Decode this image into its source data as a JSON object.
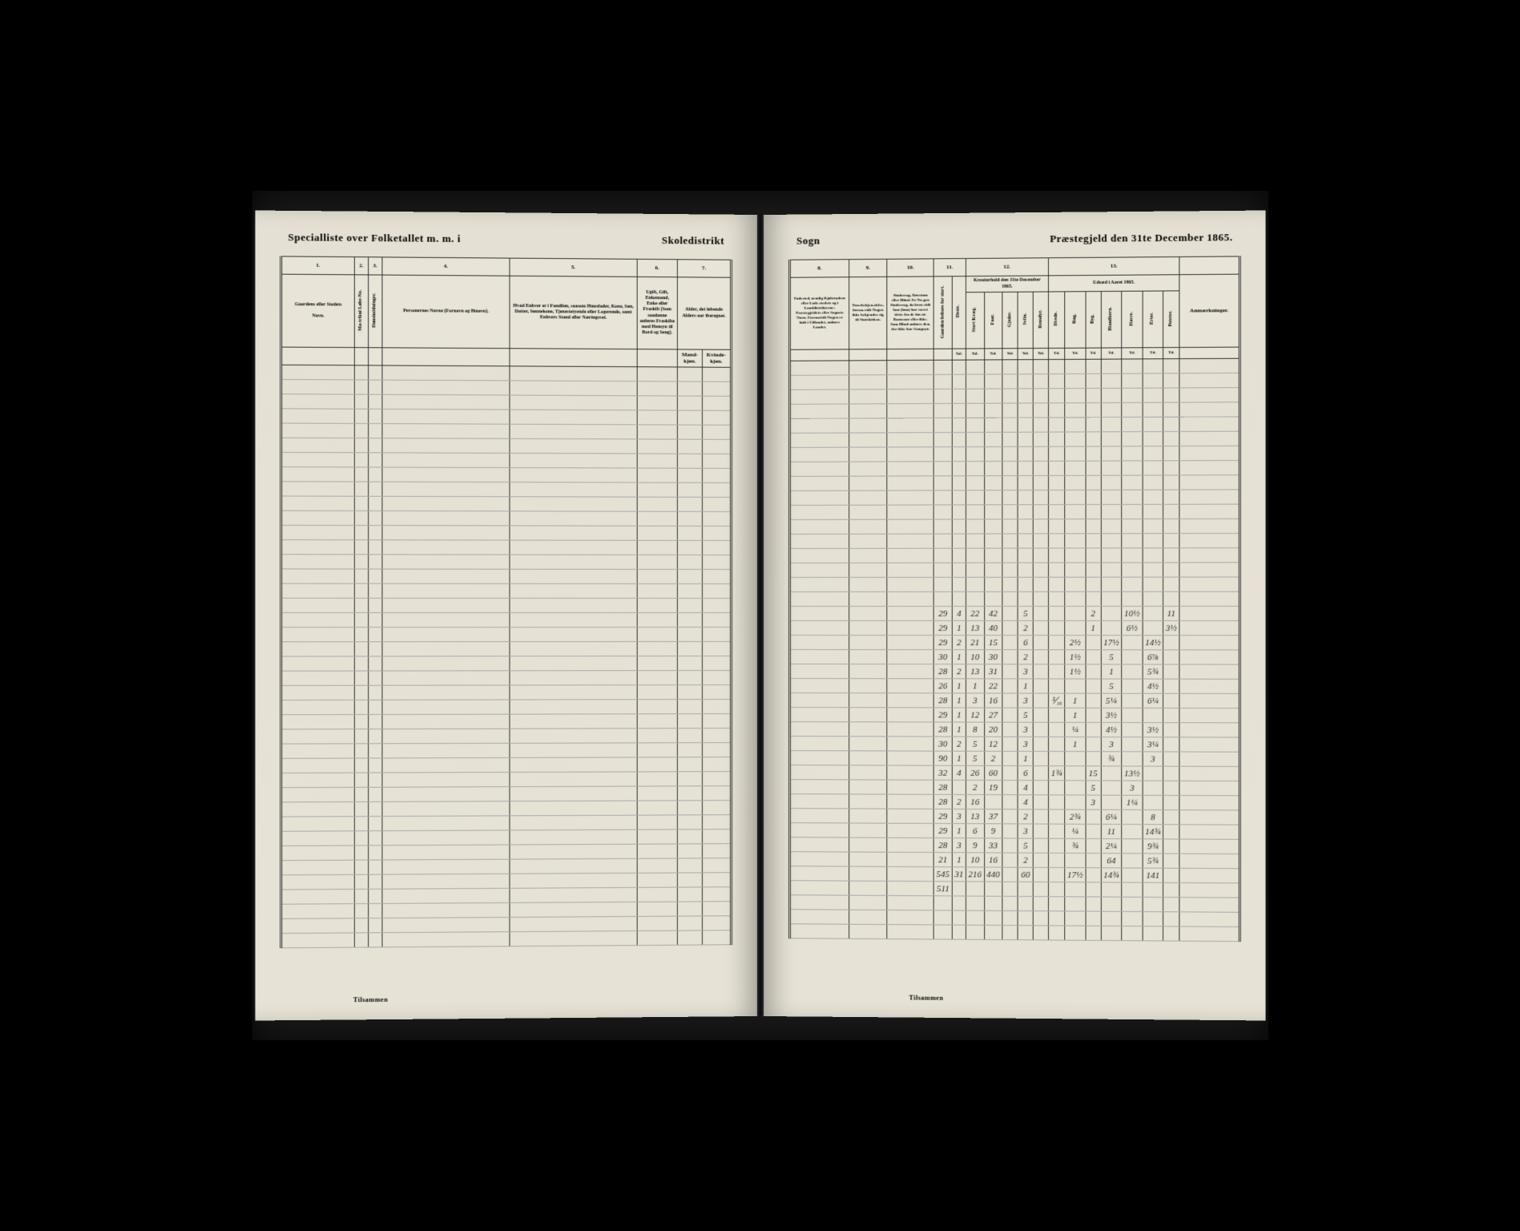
{
  "document": {
    "type": "census_ledger",
    "year": "1865",
    "country": "Norway"
  },
  "left_page": {
    "title_left": "Specialliste over Folketallet m. m. i",
    "title_right": "Skoledistrikt",
    "columns": {
      "c1": {
        "num": "1.",
        "label": "Gaardens eller Stedets",
        "sublabel": "Navn."
      },
      "c2": {
        "num": "2.",
        "label_a": "Ma-trikul Løbe-No.",
        "label_b": "Huusholdninger."
      },
      "c3": {
        "num": "3."
      },
      "c4": {
        "num": "4.",
        "label": "Personernes Navne (Fornavn og Binavn)."
      },
      "c5": {
        "num": "5.",
        "label": "Hvad Enhver er i Familien, saasom Huusfader, Kone, Søn, Datter, Sønnekone, Tjenestetyende eller Logerende, samt Enhvers Stand eller Næringsvei."
      },
      "c6": {
        "num": "6.",
        "label": "Ugift, Gift, Enkemand, Enke eller Fraskilt (Som saadanne anføres Fraskilte med Hensyn til Bord og Seng)."
      },
      "c7": {
        "num": "7.",
        "label": "Alder, det løbende Alders-aar iberegnet.",
        "sub_a": "Mand-kjøn.",
        "sub_b": "Kvinde-kjøn."
      }
    },
    "footer": "Tilsammen"
  },
  "right_page": {
    "title_left": "Sogn",
    "title_right": "Præstegjeld den 31te December 1865.",
    "columns": {
      "c8": {
        "num": "8.",
        "label": "Fødested, nemlig Kjøbstadens eller Lade-stedets og i Landdistrikterne: Præstegjeldets eller Sognets Navn. Forsaavidt Nogen er født i Udlandet, anføres Landet."
      },
      "c9": {
        "num": "9.",
        "label": "Troesbekjen-delse, forsaa-vidt Nogen ikke bekjender sig til Statskirken."
      },
      "c10": {
        "num": "10.",
        "label": "Sindssvag, Døvstum eller Blind. Er No-gen Sindssvag, da hvor-vidt han (hun) har været dette fra de før-ste Barneaar eller ikke. Som Blind anføres den, der ikke har Gangsyn."
      },
      "c11": {
        "num": "11.",
        "label_a": "Gaarden beboes for stort.",
        "label_b": "Heste."
      },
      "c12": {
        "num": "12.",
        "label": "Kreaturhold den 31te December 1865.",
        "subs": [
          "Stort Kvæg.",
          "Faar.",
          "Gjeder.",
          "Sviin.",
          "Rensdyr."
        ]
      },
      "c13": {
        "num": "13.",
        "label": "Udsæd i Aaret 1865.",
        "subs": [
          "Hvede.",
          "Rug.",
          "Byg.",
          "Blandkorn.",
          "Havre.",
          "Erter.",
          "Poteter."
        ]
      },
      "c14": {
        "label": "Anmærkninger."
      }
    },
    "footer": "Tilsammen",
    "data_rows": [
      {
        "r": [
          "29",
          "4",
          "22",
          "42",
          "",
          "5",
          "",
          "",
          "",
          "2",
          "",
          "10½",
          "",
          "11",
          ""
        ]
      },
      {
        "r": [
          "29",
          "1",
          "13",
          "40",
          "",
          "2",
          "",
          "",
          "",
          "1",
          "",
          "6½",
          "",
          "3½",
          ""
        ]
      },
      {
        "r": [
          "29",
          "2",
          "21",
          "15",
          "",
          "6",
          "",
          "",
          "2½",
          "",
          "17½",
          "",
          "14½",
          "",
          ""
        ]
      },
      {
        "r": [
          "30",
          "1",
          "10",
          "30",
          "",
          "2",
          "",
          "",
          "1½",
          "",
          "5",
          "",
          "6⅞",
          "",
          ""
        ]
      },
      {
        "r": [
          "28",
          "2",
          "13",
          "31",
          "",
          "3",
          "",
          "",
          "1½",
          "",
          "1",
          "",
          "5¾",
          "",
          ""
        ]
      },
      {
        "r": [
          "26",
          "1",
          "1",
          "22",
          "",
          "1",
          "",
          "",
          "",
          "",
          "5",
          "",
          "4½",
          "",
          ""
        ]
      },
      {
        "r": [
          "28",
          "1",
          "3",
          "16",
          "",
          "3",
          "",
          "⅟₁₆",
          "1",
          "",
          "5¼",
          "",
          "6¼",
          "",
          ""
        ]
      },
      {
        "r": [
          "29",
          "1",
          "12",
          "27",
          "",
          "5",
          "",
          "",
          "1",
          "",
          "3½",
          "",
          "",
          "",
          ""
        ]
      },
      {
        "r": [
          "28",
          "1",
          "8",
          "20",
          "",
          "3",
          "",
          "",
          "¼",
          "",
          "4½",
          "",
          "3½",
          "",
          ""
        ]
      },
      {
        "r": [
          "30",
          "2",
          "5",
          "12",
          "",
          "3",
          "",
          "",
          "1",
          "",
          "3",
          "",
          "3¼",
          "",
          ""
        ]
      },
      {
        "r": [
          "90",
          "1",
          "5",
          "2",
          "",
          "1",
          "",
          "",
          "",
          "",
          "¾",
          "",
          "3",
          "",
          ""
        ]
      },
      {
        "r": [
          "32",
          "4",
          "26",
          "60",
          "",
          "6",
          "",
          "1¾",
          "",
          "15",
          "",
          "13½",
          "",
          "",
          ""
        ]
      },
      {
        "r": [
          "28",
          "",
          "2",
          "19",
          "",
          "4",
          "",
          "",
          "",
          "5",
          "",
          "3",
          "",
          "",
          ""
        ]
      },
      {
        "r": [
          "28",
          "2",
          "16",
          "",
          "",
          "4",
          "",
          "",
          "",
          "3",
          "",
          "1¼",
          "",
          "",
          ""
        ]
      },
      {
        "r": [
          "29",
          "3",
          "13",
          "37",
          "",
          "2",
          "",
          "",
          "2¾",
          "",
          "6¼",
          "",
          "8",
          "",
          ""
        ]
      },
      {
        "r": [
          "29",
          "1",
          "6",
          "9",
          "",
          "3",
          "",
          "",
          "¼",
          "",
          "11",
          "",
          "14¾",
          "",
          ""
        ]
      },
      {
        "r": [
          "28",
          "3",
          "9",
          "33",
          "",
          "5",
          "",
          "",
          "¾",
          "",
          "2¼",
          "",
          "9¾",
          "",
          ""
        ]
      },
      {
        "r": [
          "21",
          "1",
          "10",
          "16",
          "",
          "2",
          "",
          "",
          "",
          "",
          "64",
          "",
          "5¾",
          "",
          ""
        ]
      },
      {
        "r": [
          "545",
          "31",
          "216",
          "440",
          "",
          "60",
          "",
          "",
          "17½",
          "",
          "14¾",
          "",
          "141",
          "",
          ""
        ]
      },
      {
        "r": [
          "511",
          "",
          "",
          "",
          "",
          "",
          "",
          "",
          "",
          "",
          "",
          "",
          "",
          "",
          ""
        ]
      }
    ]
  },
  "colors": {
    "paper": "#e8e4d8",
    "ink": "#1a1a1a",
    "rule": "#333333",
    "faint_rule": "#aaaaaa",
    "background": "#000000"
  }
}
